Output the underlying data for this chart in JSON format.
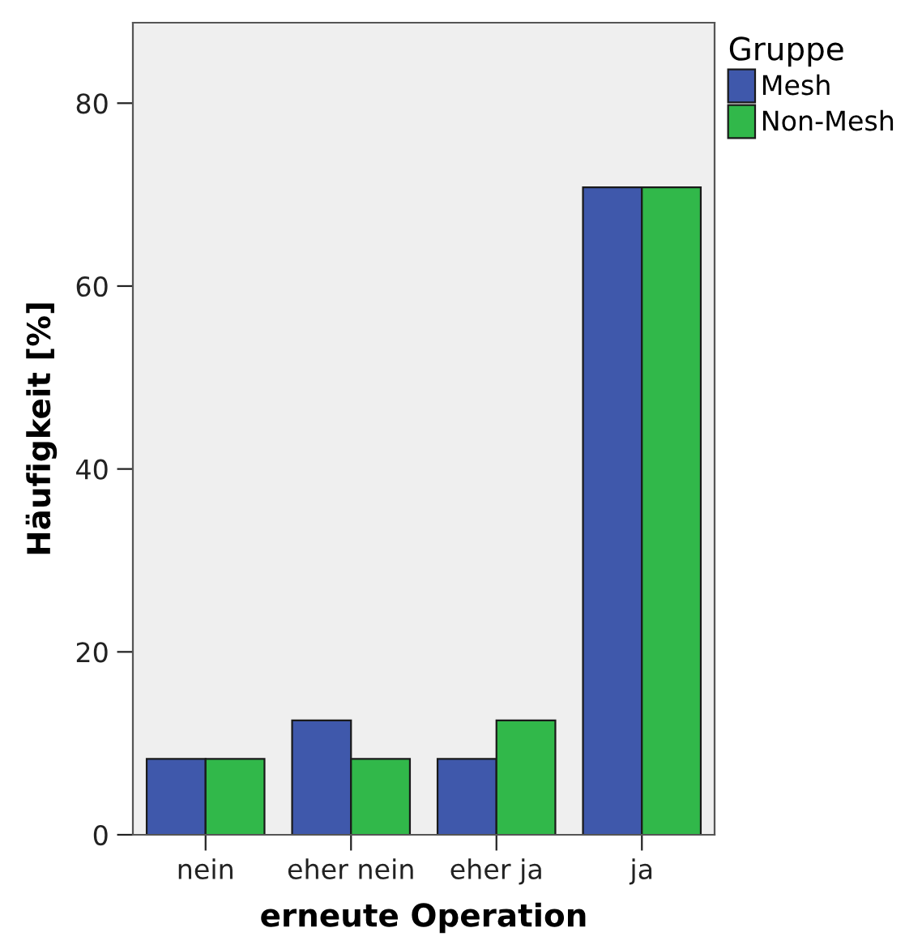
{
  "chart_data": {
    "type": "bar",
    "xlabel": "erneute Operation",
    "ylabel": "Häufigkeit [%]",
    "legend_title": "Gruppe",
    "categories": [
      "nein",
      "eher nein",
      "eher ja",
      "ja"
    ],
    "series": [
      {
        "name": "Mesh",
        "color": "#3f58ab",
        "values": [
          8.3,
          12.5,
          8.3,
          70.8
        ]
      },
      {
        "name": "Non-Mesh",
        "color": "#31b84a",
        "values": [
          8.3,
          8.3,
          12.5,
          70.8
        ]
      }
    ],
    "ylim": [
      0,
      88.8
    ],
    "yticks": [
      0,
      20,
      40,
      60,
      80
    ],
    "grid": false,
    "legend": "top right"
  }
}
